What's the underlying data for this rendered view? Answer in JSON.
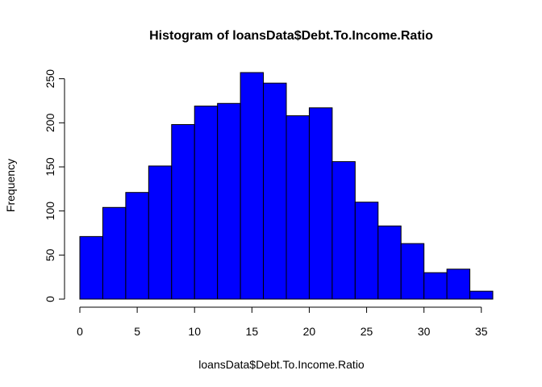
{
  "chart_data": {
    "type": "bar",
    "title": "Histogram of loansData$Debt.To.Income.Ratio",
    "xlabel": "loansData$Debt.To.Income.Ratio",
    "ylabel": "Frequency",
    "bin_edges": [
      0,
      2,
      4,
      6,
      8,
      10,
      12,
      14,
      16,
      18,
      20,
      22,
      24,
      26,
      28,
      30,
      32,
      34,
      36
    ],
    "values": [
      71,
      104,
      121,
      151,
      198,
      219,
      222,
      257,
      245,
      208,
      217,
      156,
      110,
      83,
      63,
      30,
      34,
      9
    ],
    "xlim": [
      0,
      36
    ],
    "ylim": [
      0,
      257
    ],
    "x_ticks": [
      0,
      5,
      10,
      15,
      20,
      25,
      30,
      35
    ],
    "y_ticks": [
      0,
      50,
      100,
      150,
      200,
      250
    ],
    "bar_color": "#0000FF",
    "grid": false,
    "legend": "none"
  }
}
